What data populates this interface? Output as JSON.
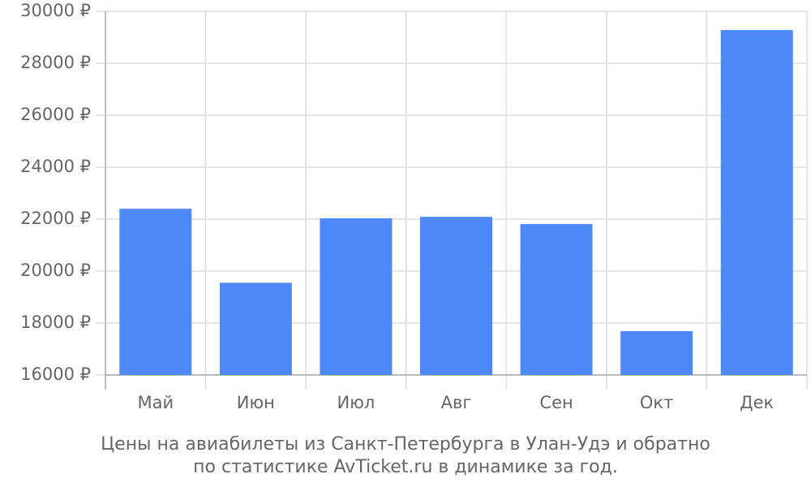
{
  "chart_data": {
    "type": "bar",
    "title": [
      "Цены на авиабилеты из Санкт-Петербурга в Улан-Удэ и обратно",
      "по статистике AvTicket.ru в динамике за год."
    ],
    "categories": [
      "Май",
      "Июн",
      "Июл",
      "Авг",
      "Сен",
      "Окт",
      "Дек"
    ],
    "values": [
      22400,
      19550,
      22030,
      22090,
      21810,
      17690,
      29280
    ],
    "color": "#4d89f9",
    "ylim": [
      16000,
      30000
    ],
    "yticks": [
      {
        "value": 16000,
        "label": "16000 ₽"
      },
      {
        "value": 18000,
        "label": "18000 ₽"
      },
      {
        "value": 20000,
        "label": "20000 ₽"
      },
      {
        "value": 22000,
        "label": "22000 ₽"
      },
      {
        "value": 24000,
        "label": "24000 ₽"
      },
      {
        "value": 26000,
        "label": "26000 ₽"
      },
      {
        "value": 28000,
        "label": "28000 ₽"
      },
      {
        "value": 30000,
        "label": "30000 ₽"
      }
    ],
    "grid": true
  }
}
